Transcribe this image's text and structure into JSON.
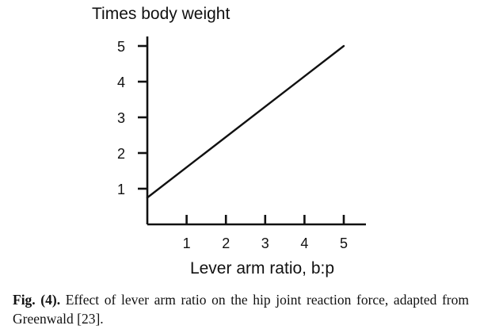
{
  "chart_data": {
    "type": "line",
    "ylabel": "Times body weight",
    "xlabel": "Lever arm ratio, b:p",
    "x_ticks": [
      "1",
      "2",
      "3",
      "4",
      "5"
    ],
    "y_ticks": [
      "1",
      "2",
      "3",
      "4",
      "5"
    ],
    "xlim": [
      0,
      5.5
    ],
    "ylim": [
      0,
      5.5
    ],
    "grid": false,
    "legend": "none",
    "series": [
      {
        "x": [
          0,
          5
        ],
        "y": [
          0.75,
          5.0
        ],
        "color": "#111111"
      }
    ]
  },
  "caption": {
    "label": "Fig. (4).",
    "text": "Effect of lever arm ratio on the hip joint reaction force, adapted from Greenwald [23]."
  }
}
